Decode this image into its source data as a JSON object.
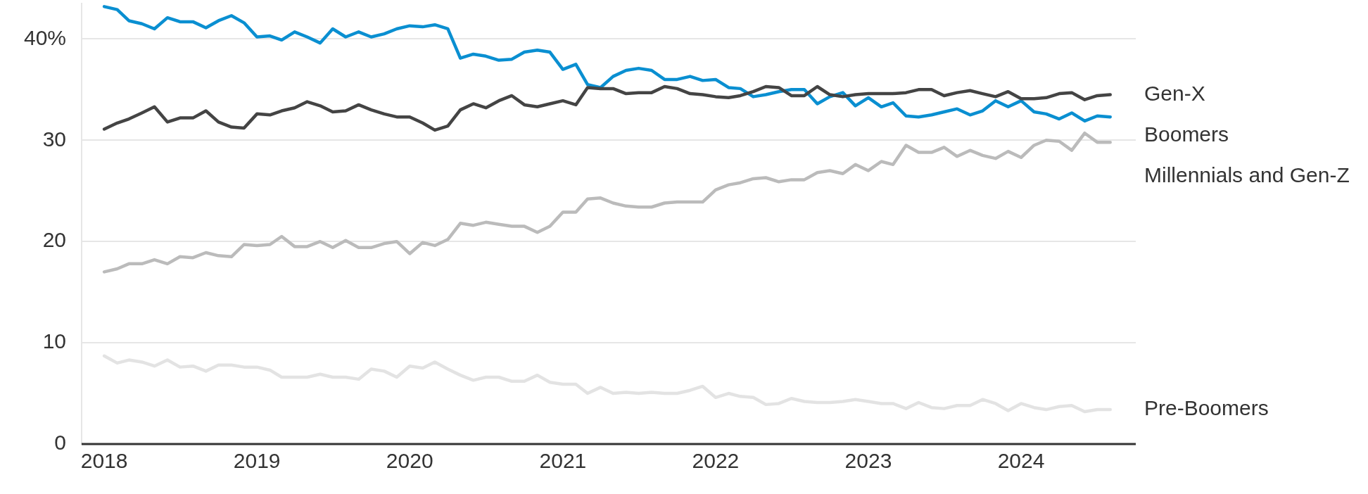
{
  "chart_data": {
    "type": "line",
    "x": [
      "2018-01",
      "2018-02",
      "2018-03",
      "2018-04",
      "2018-05",
      "2018-06",
      "2018-07",
      "2018-08",
      "2018-09",
      "2018-10",
      "2018-11",
      "2018-12",
      "2019-01",
      "2019-02",
      "2019-03",
      "2019-04",
      "2019-05",
      "2019-06",
      "2019-07",
      "2019-08",
      "2019-09",
      "2019-10",
      "2019-11",
      "2019-12",
      "2020-01",
      "2020-02",
      "2020-03",
      "2020-04",
      "2020-05",
      "2020-06",
      "2020-07",
      "2020-08",
      "2020-09",
      "2020-10",
      "2020-11",
      "2020-12",
      "2021-01",
      "2021-02",
      "2021-03",
      "2021-04",
      "2021-05",
      "2021-06",
      "2021-07",
      "2021-08",
      "2021-09",
      "2021-10",
      "2021-11",
      "2021-12",
      "2022-01",
      "2022-02",
      "2022-03",
      "2022-04",
      "2022-05",
      "2022-06",
      "2022-07",
      "2022-08",
      "2022-09",
      "2022-10",
      "2022-11",
      "2022-12",
      "2023-01",
      "2023-02",
      "2023-03",
      "2023-04",
      "2023-05",
      "2023-06",
      "2023-07",
      "2023-08",
      "2023-09",
      "2023-10",
      "2023-11",
      "2023-12",
      "2024-01",
      "2024-02",
      "2024-03",
      "2024-04",
      "2024-05",
      "2024-06",
      "2024-07",
      "2024-08"
    ],
    "series": [
      {
        "name": "Gen-X",
        "color": "#444444",
        "values": [
          31.1,
          31.7,
          32.1,
          32.7,
          33.3,
          31.8,
          32.2,
          32.2,
          32.9,
          31.8,
          31.3,
          31.2,
          32.6,
          32.5,
          32.9,
          33.2,
          33.8,
          33.4,
          32.8,
          32.9,
          33.5,
          33.0,
          32.6,
          32.3,
          32.3,
          31.7,
          31.0,
          31.4,
          33.0,
          33.6,
          33.2,
          33.9,
          34.4,
          33.5,
          33.3,
          33.6,
          33.9,
          33.5,
          35.2,
          35.1,
          35.1,
          34.6,
          34.7,
          34.7,
          35.3,
          35.1,
          34.6,
          34.5,
          34.3,
          34.2,
          34.4,
          34.8,
          35.3,
          35.2,
          34.4,
          34.4,
          35.3,
          34.5,
          34.3,
          34.5,
          34.6,
          34.6,
          34.6,
          34.7,
          35.0,
          35.0,
          34.4,
          34.7,
          34.9,
          34.6,
          34.3,
          34.8,
          34.1,
          34.1,
          34.2,
          34.6,
          34.7,
          34.0,
          34.4,
          34.5
        ]
      },
      {
        "name": "Boomers",
        "color": "#0a8fd1",
        "values": [
          43.2,
          42.9,
          41.8,
          41.5,
          41.0,
          42.1,
          41.7,
          41.7,
          41.1,
          41.8,
          42.3,
          41.6,
          40.2,
          40.3,
          39.9,
          40.7,
          40.2,
          39.6,
          41.0,
          40.2,
          40.7,
          40.2,
          40.5,
          41.0,
          41.3,
          41.2,
          41.4,
          41.0,
          38.1,
          38.5,
          38.3,
          37.9,
          38.0,
          38.7,
          38.9,
          38.7,
          37.0,
          37.5,
          35.5,
          35.2,
          36.3,
          36.9,
          37.1,
          36.9,
          36.0,
          36.0,
          36.3,
          35.9,
          36.0,
          35.2,
          35.1,
          34.3,
          34.5,
          34.8,
          35.0,
          35.0,
          33.6,
          34.3,
          34.7,
          33.4,
          34.2,
          33.3,
          33.7,
          32.4,
          32.3,
          32.5,
          32.8,
          33.1,
          32.5,
          32.9,
          33.9,
          33.3,
          33.9,
          32.8,
          32.6,
          32.1,
          32.7,
          31.9,
          32.4,
          32.3
        ]
      },
      {
        "name": "Millennials and Gen-Z",
        "color": "#bbbbbb",
        "values": [
          17.0,
          17.3,
          17.8,
          17.8,
          18.2,
          17.8,
          18.5,
          18.4,
          18.9,
          18.6,
          18.5,
          19.7,
          19.6,
          19.7,
          20.5,
          19.5,
          19.5,
          20.0,
          19.4,
          20.1,
          19.4,
          19.4,
          19.8,
          20.0,
          18.8,
          19.9,
          19.6,
          20.2,
          21.8,
          21.6,
          21.9,
          21.7,
          21.5,
          21.5,
          20.9,
          21.5,
          22.9,
          22.9,
          24.2,
          24.3,
          23.8,
          23.5,
          23.4,
          23.4,
          23.8,
          23.9,
          23.9,
          23.9,
          25.1,
          25.6,
          25.8,
          26.2,
          26.3,
          25.9,
          26.1,
          26.1,
          26.8,
          27.0,
          26.7,
          27.6,
          27.0,
          27.9,
          27.6,
          29.5,
          28.8,
          28.8,
          29.3,
          28.4,
          29.0,
          28.5,
          28.2,
          28.9,
          28.3,
          29.5,
          30.0,
          29.9,
          29.0,
          30.7,
          29.8,
          29.8
        ]
      },
      {
        "name": "Pre-Boomers",
        "color": "#e3e3e3",
        "values": [
          8.7,
          8.0,
          8.3,
          8.1,
          7.7,
          8.3,
          7.6,
          7.7,
          7.2,
          7.8,
          7.8,
          7.6,
          7.6,
          7.3,
          6.6,
          6.6,
          6.6,
          6.9,
          6.6,
          6.6,
          6.4,
          7.4,
          7.2,
          6.6,
          7.7,
          7.5,
          8.1,
          7.4,
          6.8,
          6.3,
          6.6,
          6.6,
          6.2,
          6.2,
          6.8,
          6.1,
          5.9,
          5.9,
          5.0,
          5.6,
          5.0,
          5.1,
          5.0,
          5.1,
          5.0,
          5.0,
          5.3,
          5.7,
          4.6,
          5.0,
          4.7,
          4.6,
          3.9,
          4.0,
          4.5,
          4.2,
          4.1,
          4.1,
          4.2,
          4.4,
          4.2,
          4.0,
          4.0,
          3.5,
          4.1,
          3.6,
          3.5,
          3.8,
          3.8,
          4.4,
          4.0,
          3.3,
          4.0,
          3.6,
          3.4,
          3.7,
          3.8,
          3.2,
          3.4,
          3.4
        ]
      }
    ],
    "xlim": [
      "2017-11-08",
      "2024-10-01"
    ],
    "xticks": [
      "2018",
      "2019",
      "2020",
      "2021",
      "2022",
      "2023",
      "2024"
    ],
    "ylim": [
      0,
      43.5
    ],
    "yticks": [
      0,
      10,
      20,
      30,
      {
        "value": 40,
        "label": "40%"
      }
    ],
    "grid": "y"
  }
}
